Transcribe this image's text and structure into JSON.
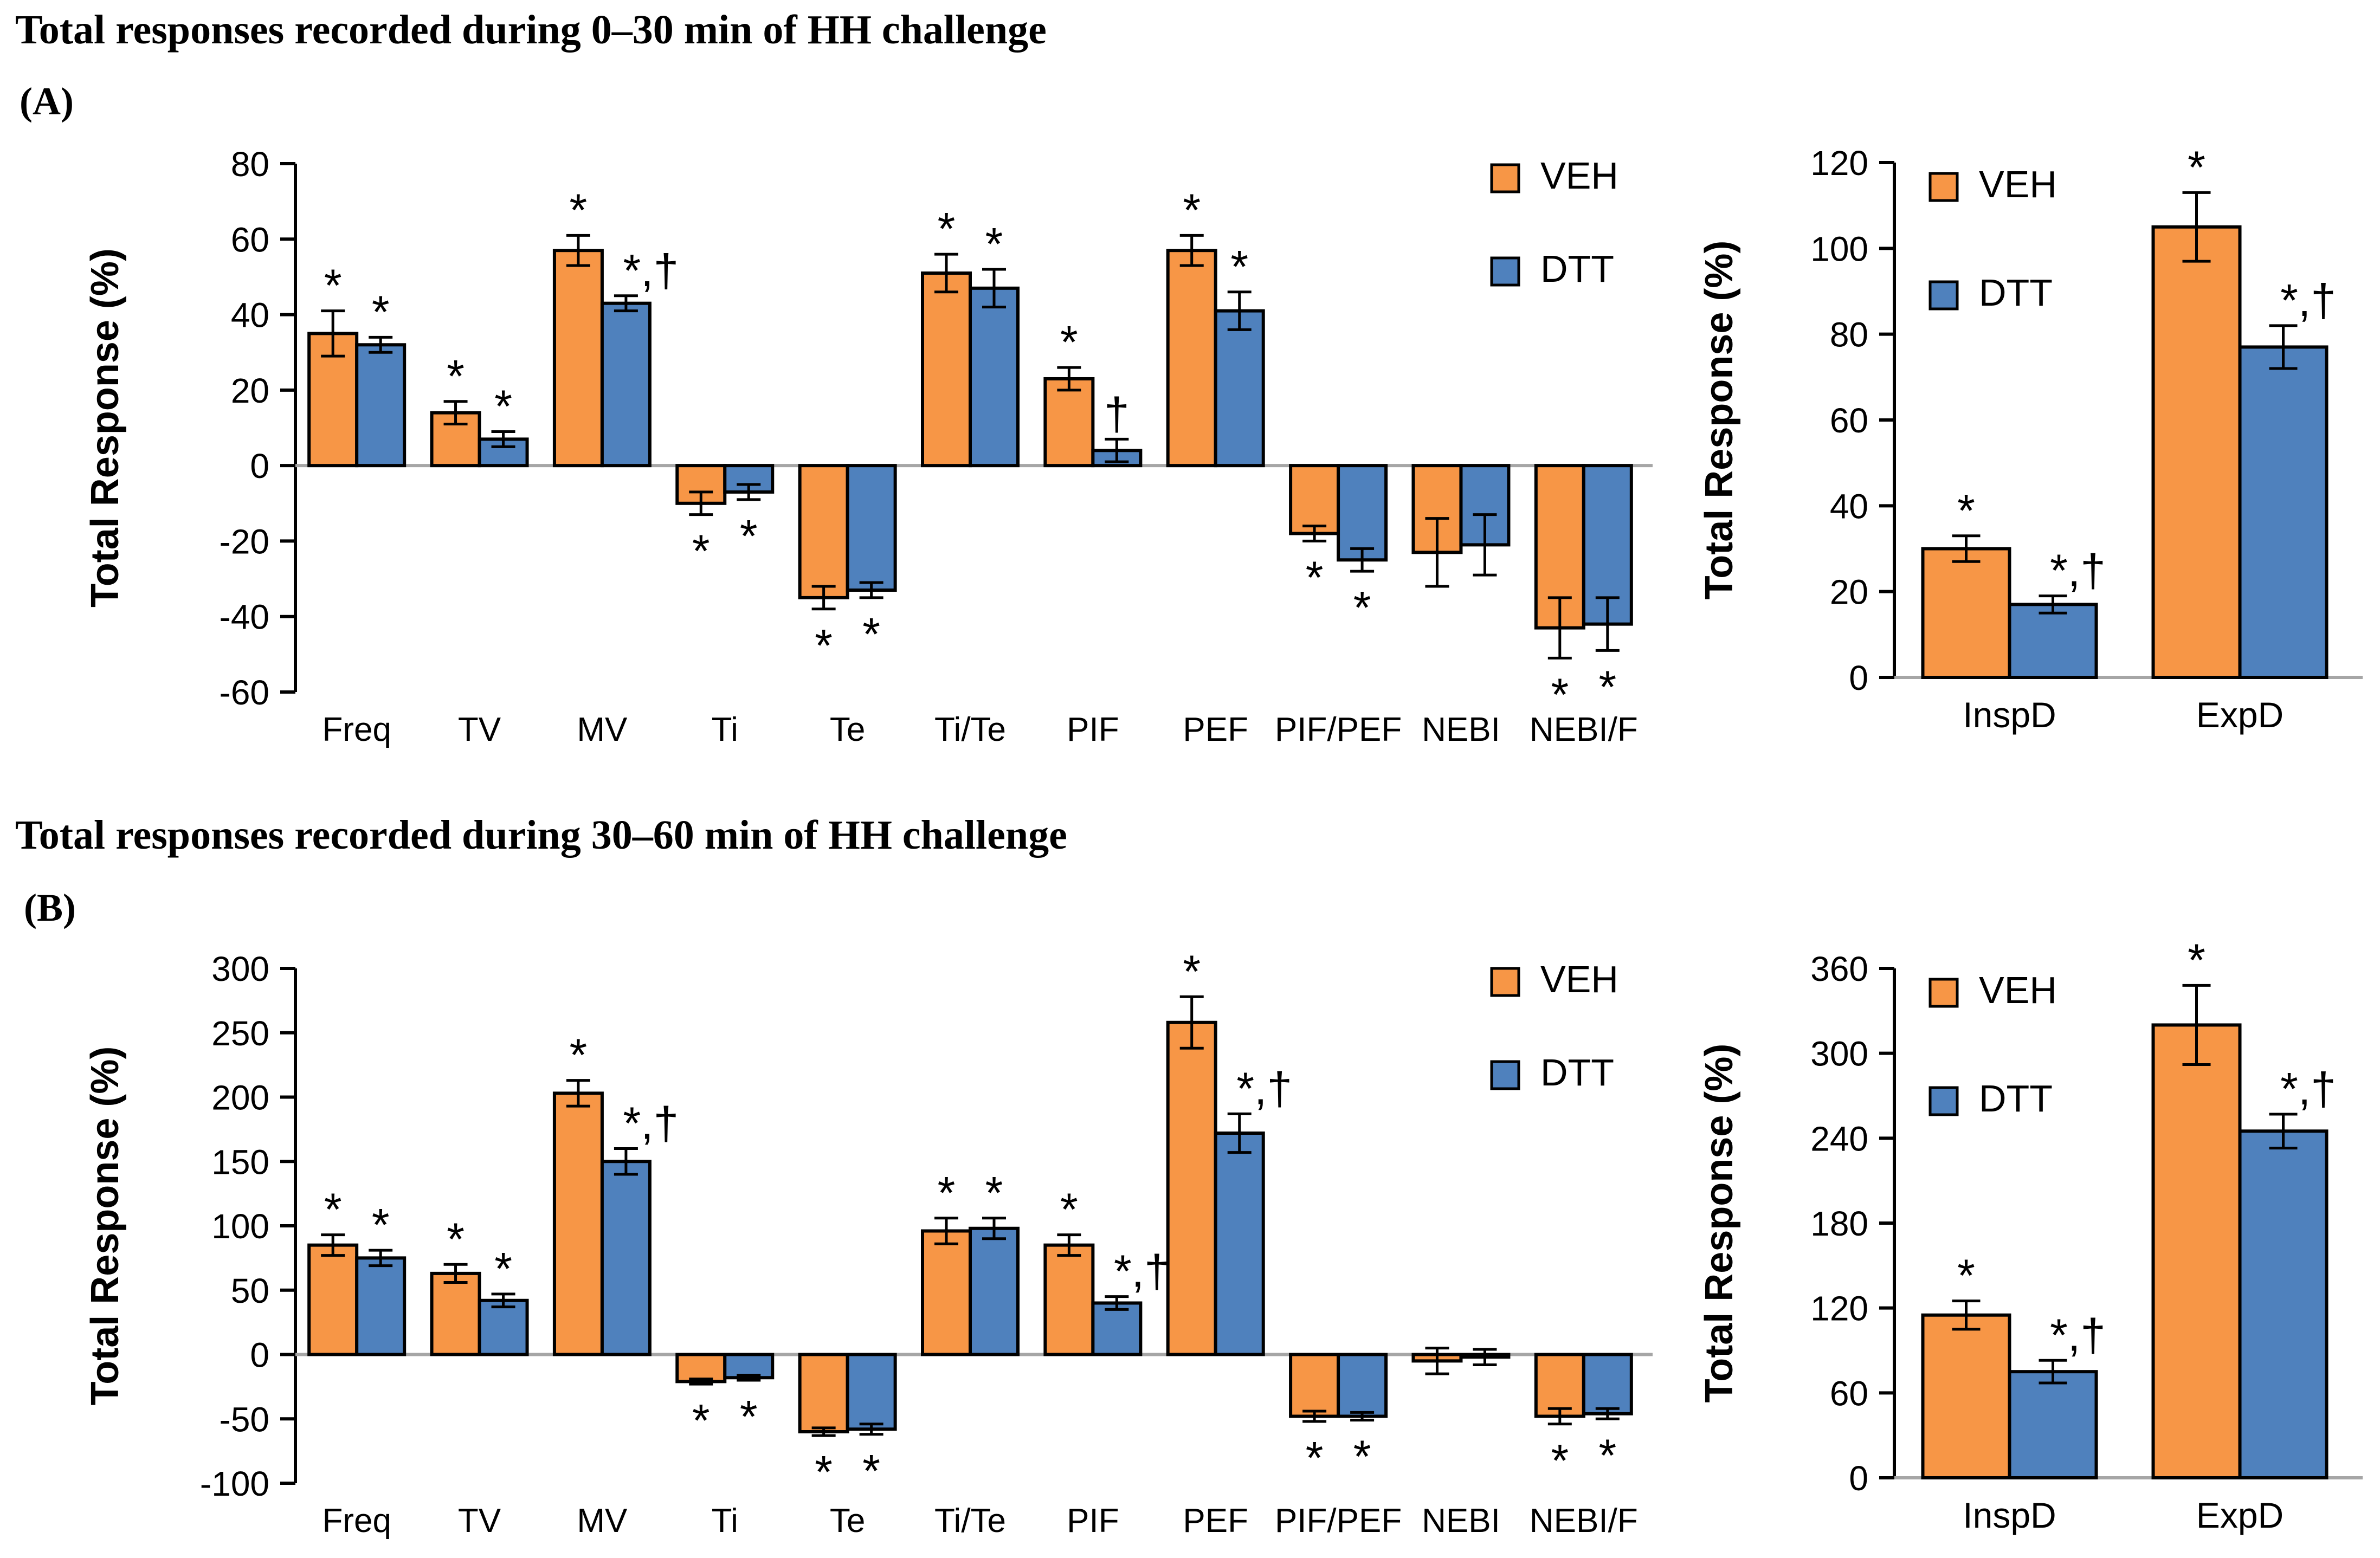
{
  "colors": {
    "veh": "#F79646",
    "dtt": "#4F81BD",
    "bar_border": "#000000",
    "zero_line": "#A6A6A6",
    "axis": "#000000",
    "text": "#000000"
  },
  "panels": [
    {
      "id": "A",
      "title": "Total responses recorded during 0–30 min of HH challenge",
      "label": "(A)"
    },
    {
      "id": "B",
      "title": "Total responses recorded during 30–60 min of HH challenge",
      "label": "(B)"
    }
  ],
  "chart_data": [
    {
      "type": "bar",
      "panel": "A",
      "position": "main",
      "ylabel": "Total Response (%)",
      "ylim": [
        -60,
        80
      ],
      "ytick_step": 20,
      "grid": false,
      "legend_position": "top-right",
      "categories": [
        "Freq",
        "TV",
        "MV",
        "Ti",
        "Te",
        "Ti/Te",
        "PIF",
        "PEF",
        "PIF/PEF",
        "NEBI",
        "NEBI/F"
      ],
      "series": [
        {
          "name": "VEH",
          "key": "veh",
          "values": [
            35,
            14,
            57,
            -10,
            -35,
            51,
            23,
            57,
            -18,
            -23,
            -43
          ],
          "errors": [
            6,
            3,
            4,
            3,
            3,
            5,
            3,
            4,
            2,
            9,
            8
          ],
          "sig": [
            "*",
            "*",
            "*",
            "*",
            "*",
            "*",
            "*",
            "*",
            "*",
            "",
            "*"
          ]
        },
        {
          "name": "DTT",
          "key": "dtt",
          "values": [
            32,
            7,
            43,
            -7,
            -33,
            47,
            4,
            41,
            -25,
            -21,
            -42
          ],
          "errors": [
            2,
            2,
            2,
            2,
            2,
            5,
            3,
            5,
            3,
            8,
            7
          ],
          "sig": [
            "*",
            "*",
            "*,†",
            "*",
            "*",
            "*",
            "†",
            "*",
            "*",
            "",
            "*"
          ]
        }
      ]
    },
    {
      "type": "bar",
      "panel": "A",
      "position": "side",
      "ylabel": "Total Response (%)",
      "ylim": [
        0,
        120
      ],
      "ytick_step": 20,
      "grid": false,
      "legend_position": "top-left",
      "categories": [
        "InspD",
        "ExpD"
      ],
      "series": [
        {
          "name": "VEH",
          "key": "veh",
          "values": [
            30,
            105
          ],
          "errors": [
            3,
            8
          ],
          "sig": [
            "*",
            "*"
          ]
        },
        {
          "name": "DTT",
          "key": "dtt",
          "values": [
            17,
            77
          ],
          "errors": [
            2,
            5
          ],
          "sig": [
            "*,†",
            "*,†"
          ]
        }
      ]
    },
    {
      "type": "bar",
      "panel": "B",
      "position": "main",
      "ylabel": "Total Response (%)",
      "ylim": [
        -100,
        300
      ],
      "ytick_step": 50,
      "grid": false,
      "legend_position": "top-right",
      "categories": [
        "Freq",
        "TV",
        "MV",
        "Ti",
        "Te",
        "Ti/Te",
        "PIF",
        "PEF",
        "PIF/PEF",
        "NEBI",
        "NEBI/F"
      ],
      "series": [
        {
          "name": "VEH",
          "key": "veh",
          "values": [
            85,
            63,
            203,
            -21,
            -60,
            96,
            85,
            258,
            -48,
            -5,
            -48
          ],
          "errors": [
            8,
            7,
            10,
            2,
            3,
            10,
            8,
            20,
            4,
            10,
            6
          ],
          "sig": [
            "*",
            "*",
            "*",
            "*",
            "*",
            "*",
            "*",
            "*",
            "*",
            "",
            "*"
          ]
        },
        {
          "name": "DTT",
          "key": "dtt",
          "values": [
            75,
            42,
            150,
            -18,
            -58,
            98,
            40,
            172,
            -48,
            -2,
            -46
          ],
          "errors": [
            6,
            5,
            10,
            2,
            4,
            8,
            5,
            15,
            3,
            6,
            4
          ],
          "sig": [
            "*",
            "*",
            "*,†",
            "*",
            "*",
            "*",
            "*,†",
            "*,†",
            "*",
            "",
            "*"
          ]
        }
      ]
    },
    {
      "type": "bar",
      "panel": "B",
      "position": "side",
      "ylabel": "Total Response (%)",
      "ylim": [
        0,
        360
      ],
      "ytick_step": 60,
      "grid": false,
      "legend_position": "top-left",
      "categories": [
        "InspD",
        "ExpD"
      ],
      "series": [
        {
          "name": "VEH",
          "key": "veh",
          "values": [
            115,
            320
          ],
          "errors": [
            10,
            28
          ],
          "sig": [
            "*",
            "*"
          ]
        },
        {
          "name": "DTT",
          "key": "dtt",
          "values": [
            75,
            245
          ],
          "errors": [
            8,
            12
          ],
          "sig": [
            "*,†",
            "*,†"
          ]
        }
      ]
    }
  ]
}
